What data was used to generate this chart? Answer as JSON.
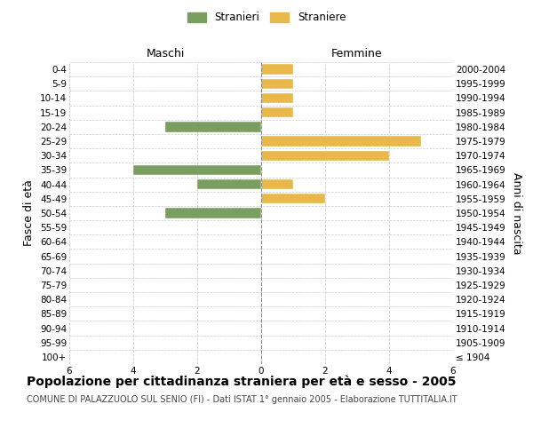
{
  "age_groups": [
    "100+",
    "95-99",
    "90-94",
    "85-89",
    "80-84",
    "75-79",
    "70-74",
    "65-69",
    "60-64",
    "55-59",
    "50-54",
    "45-49",
    "40-44",
    "35-39",
    "30-34",
    "25-29",
    "20-24",
    "15-19",
    "10-14",
    "5-9",
    "0-4"
  ],
  "birth_years": [
    "≤ 1904",
    "1905-1909",
    "1910-1914",
    "1915-1919",
    "1920-1924",
    "1925-1929",
    "1930-1934",
    "1935-1939",
    "1940-1944",
    "1945-1949",
    "1950-1954",
    "1955-1959",
    "1960-1964",
    "1965-1969",
    "1970-1974",
    "1975-1979",
    "1980-1984",
    "1985-1989",
    "1990-1994",
    "1995-1999",
    "2000-2004"
  ],
  "maschi_stranieri": [
    0,
    0,
    0,
    0,
    0,
    0,
    0,
    0,
    0,
    0,
    3,
    0,
    2,
    4,
    0,
    0,
    3,
    0,
    0,
    0,
    0
  ],
  "femmine_straniere": [
    0,
    0,
    0,
    0,
    0,
    0,
    0,
    0,
    0,
    0,
    0,
    2,
    1,
    0,
    4,
    5,
    0,
    1,
    1,
    1,
    1
  ],
  "color_maschi": "#7a9e5f",
  "color_femmine": "#e8b84b",
  "title": "Popolazione per cittadinanza straniera per età e sesso - 2005",
  "subtitle": "COMUNE DI PALAZZUOLO SUL SENIO (FI) - Dati ISTAT 1° gennaio 2005 - Elaborazione TUTTITALIA.IT",
  "legend_maschi": "Stranieri",
  "legend_femmine": "Straniere",
  "xlabel_left": "Maschi",
  "xlabel_right": "Femmine",
  "ylabel_left": "Fasce di età",
  "ylabel_right": "Anni di nascita",
  "xlim": 6,
  "bg_color": "#ffffff",
  "grid_color": "#cccccc",
  "center_line_color": "#888888",
  "title_fontsize": 10,
  "subtitle_fontsize": 7,
  "tick_fontsize": 7.5,
  "label_fontsize": 9,
  "legend_fontsize": 8.5
}
